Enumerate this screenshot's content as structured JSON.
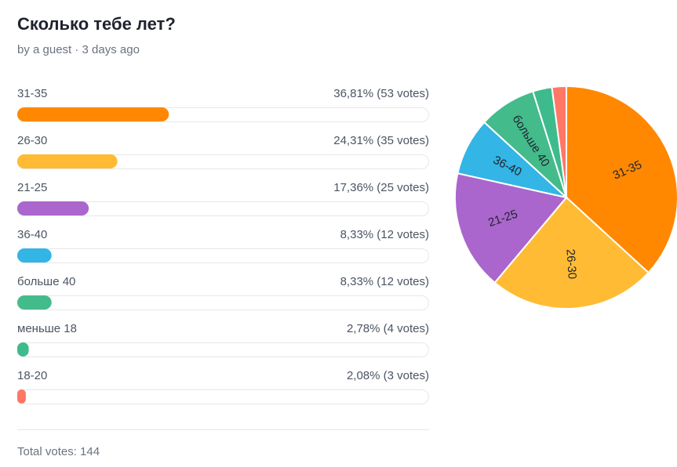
{
  "header": {
    "title": "Сколько тебе лет?",
    "byline": "by a guest · 3 days ago"
  },
  "options": [
    {
      "label": "31-35",
      "result": "36,81% (53 votes)",
      "percent": 36.81,
      "color": "#ff8800"
    },
    {
      "label": "26-30",
      "result": "24,31% (35 votes)",
      "percent": 24.31,
      "color": "#ffbb33"
    },
    {
      "label": "21-25",
      "result": "17,36% (25 votes)",
      "percent": 17.36,
      "color": "#aa66cc"
    },
    {
      "label": "36-40",
      "result": "8,33% (12 votes)",
      "percent": 8.33,
      "color": "#33b5e5"
    },
    {
      "label": "больше 40",
      "result": "8,33% (12 votes)",
      "percent": 8.33,
      "color": "#44bb8a"
    },
    {
      "label": "меньше 18",
      "result": "2,78% (4 votes)",
      "percent": 2.78,
      "color": "#3dbb8d"
    },
    {
      "label": "18-20",
      "result": "2,08% (3 votes)",
      "percent": 2.08,
      "color": "#ff7766"
    }
  ],
  "total": "Total votes: 144"
}
